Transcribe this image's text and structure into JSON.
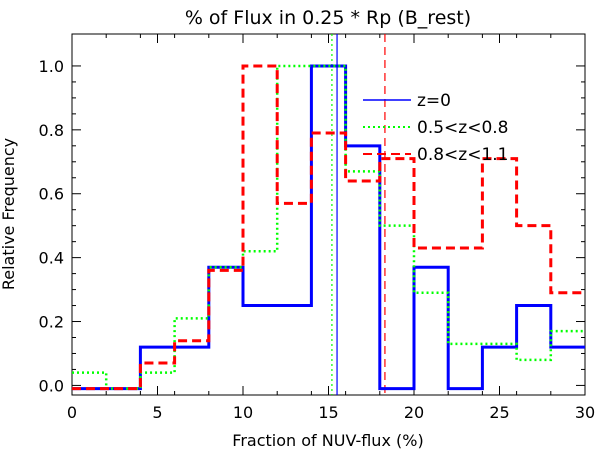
{
  "chart_data": {
    "type": "histogram-step",
    "title": "% of Flux in 0.25 * Rp (B_rest)",
    "xlabel": "Fraction of NUV-flux (%)",
    "ylabel": "Relative Frequency",
    "xlim": [
      0,
      30
    ],
    "ylim": [
      -0.03,
      1.1
    ],
    "bin_edges": [
      0,
      2,
      4,
      6,
      8,
      10,
      12,
      14,
      16,
      18,
      20,
      22,
      24,
      26,
      28,
      30
    ],
    "x_ticks": [
      0,
      5,
      10,
      15,
      20,
      25,
      30
    ],
    "x_tick_labels": [
      "0",
      "5",
      "10",
      "15",
      "20",
      "25",
      "30"
    ],
    "y_ticks": [
      0.0,
      0.2,
      0.4,
      0.6,
      0.8,
      1.0
    ],
    "y_tick_labels": [
      "0.0",
      "0.2",
      "0.4",
      "0.6",
      "0.8",
      "1.0"
    ],
    "series": [
      {
        "name": "z=0",
        "color": "#0000ff",
        "style": "solid",
        "values": [
          -0.01,
          -0.01,
          0.12,
          0.12,
          0.37,
          0.25,
          0.25,
          1.0,
          0.75,
          -0.01,
          0.37,
          -0.01,
          0.12,
          0.25,
          0.12
        ],
        "median": 15.5
      },
      {
        "name": "0.5<z<0.8",
        "color": "#00ff00",
        "style": "dotted",
        "values": [
          0.04,
          -0.01,
          0.04,
          0.21,
          0.37,
          0.42,
          1.0,
          1.0,
          0.67,
          0.5,
          0.29,
          0.13,
          0.13,
          0.08,
          0.17
        ],
        "median": 15.2
      },
      {
        "name": "0.8<z<1.1",
        "color": "#ff0000",
        "style": "dashed",
        "values": [
          -0.01,
          -0.01,
          0.07,
          0.14,
          0.36,
          1.0,
          0.57,
          0.79,
          0.64,
          0.71,
          0.43,
          0.43,
          0.71,
          0.5,
          0.29
        ],
        "median": 18.3
      }
    ],
    "legend_position": "upper right"
  }
}
